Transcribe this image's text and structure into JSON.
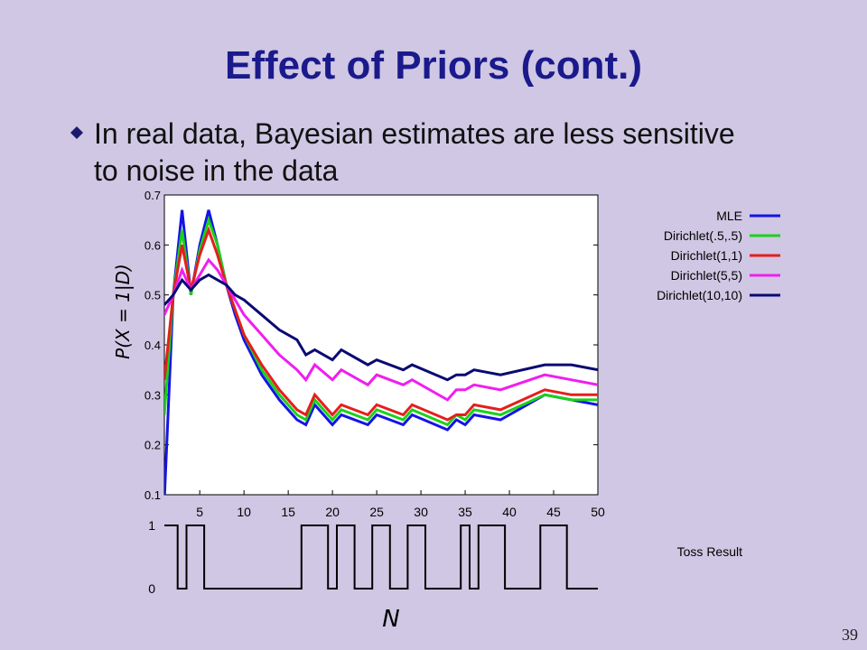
{
  "slide": {
    "title": "Effect of Priors (cont.)",
    "bullet": "In real data, Bayesian estimates are less sensitive to noise in the data",
    "page_number": "39"
  },
  "chart_data": [
    {
      "type": "line",
      "title": "",
      "xlabel": "N",
      "ylabel": "P(X = 1|D)",
      "xlim": [
        1,
        50
      ],
      "ylim": [
        0.1,
        0.7
      ],
      "x_ticks": [
        5,
        10,
        15,
        20,
        25,
        30,
        35,
        40,
        45,
        50
      ],
      "y_ticks": [
        0.1,
        0.2,
        0.3,
        0.4,
        0.5,
        0.6,
        0.7
      ],
      "legend_position": "right",
      "x": [
        1,
        2,
        3,
        4,
        5,
        6,
        7,
        8,
        9,
        10,
        12,
        14,
        16,
        17,
        18,
        20,
        21,
        24,
        25,
        28,
        29,
        33,
        34,
        35,
        36,
        39,
        44,
        47,
        50
      ],
      "series": [
        {
          "name": "MLE",
          "color": "#1414e6",
          "values": [
            0.09,
            0.5,
            0.67,
            0.5,
            0.6,
            0.67,
            0.6,
            0.52,
            0.46,
            0.41,
            0.34,
            0.29,
            0.25,
            0.24,
            0.28,
            0.24,
            0.26,
            0.24,
            0.26,
            0.24,
            0.26,
            0.23,
            0.25,
            0.24,
            0.26,
            0.25,
            0.3,
            0.29,
            0.28
          ]
        },
        {
          "name": "Dirichlet(.5,.5)",
          "color": "#19d219",
          "values": [
            0.26,
            0.5,
            0.63,
            0.5,
            0.59,
            0.65,
            0.6,
            0.52,
            0.47,
            0.42,
            0.35,
            0.3,
            0.26,
            0.25,
            0.29,
            0.25,
            0.27,
            0.25,
            0.27,
            0.25,
            0.27,
            0.24,
            0.26,
            0.25,
            0.27,
            0.26,
            0.3,
            0.29,
            0.29
          ]
        },
        {
          "name": "Dirichlet(1,1)",
          "color": "#e61e1e",
          "values": [
            0.33,
            0.5,
            0.6,
            0.51,
            0.58,
            0.63,
            0.58,
            0.52,
            0.47,
            0.42,
            0.36,
            0.31,
            0.27,
            0.26,
            0.3,
            0.26,
            0.28,
            0.26,
            0.28,
            0.26,
            0.28,
            0.25,
            0.26,
            0.26,
            0.28,
            0.27,
            0.31,
            0.3,
            0.3
          ]
        },
        {
          "name": "Dirichlet(5,5)",
          "color": "#f01ef0",
          "values": [
            0.46,
            0.5,
            0.55,
            0.51,
            0.54,
            0.57,
            0.55,
            0.52,
            0.49,
            0.46,
            0.42,
            0.38,
            0.35,
            0.33,
            0.36,
            0.33,
            0.35,
            0.32,
            0.34,
            0.32,
            0.33,
            0.29,
            0.31,
            0.31,
            0.32,
            0.31,
            0.34,
            0.33,
            0.32
          ]
        },
        {
          "name": "Dirichlet(10,10)",
          "color": "#0a0a73",
          "values": [
            0.48,
            0.5,
            0.53,
            0.51,
            0.53,
            0.54,
            0.53,
            0.52,
            0.5,
            0.49,
            0.46,
            0.43,
            0.41,
            0.38,
            0.39,
            0.37,
            0.39,
            0.36,
            0.37,
            0.35,
            0.36,
            0.33,
            0.34,
            0.34,
            0.35,
            0.34,
            0.36,
            0.36,
            0.35
          ]
        }
      ]
    },
    {
      "type": "line",
      "title": "Toss Result",
      "xlabel": "N",
      "ylabel": "",
      "xlim": [
        1,
        50
      ],
      "ylim": [
        0,
        1
      ],
      "y_ticks": [
        0,
        1
      ],
      "step": true,
      "series": [
        {
          "name": "",
          "color": "#000000",
          "values": [
            1,
            1,
            0,
            1,
            1,
            0,
            0,
            0,
            0,
            0,
            0,
            0,
            0,
            0,
            0,
            0,
            1,
            1,
            1,
            0,
            1,
            1,
            0,
            0,
            1,
            1,
            0,
            0,
            1,
            1,
            0,
            0,
            0,
            0,
            1,
            0,
            1,
            1,
            1,
            0,
            0,
            0,
            0,
            1,
            1,
            1,
            0,
            0,
            0,
            0
          ]
        }
      ]
    }
  ]
}
